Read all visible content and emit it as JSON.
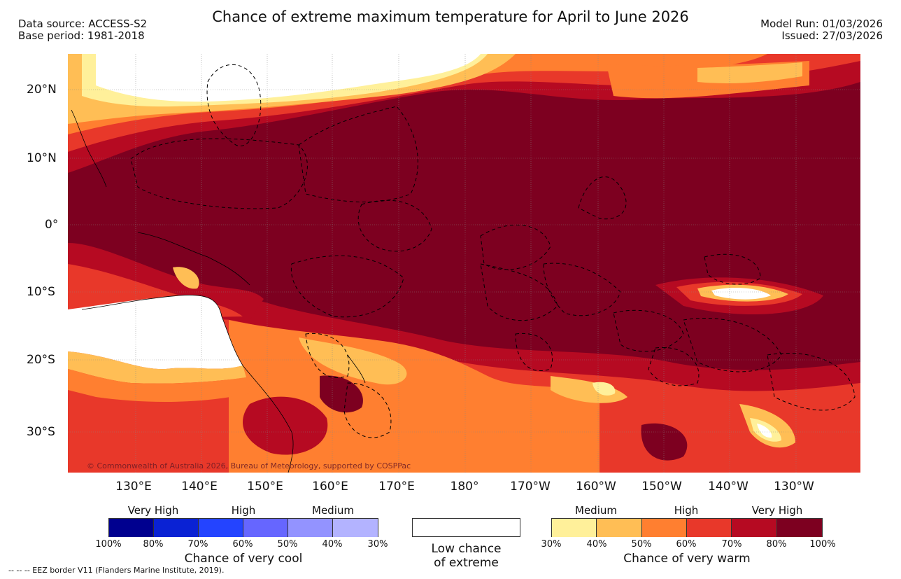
{
  "header": {
    "title": "Chance of extreme maximum temperature for April to June 2026",
    "data_source": "Data source: ACCESS-S2",
    "base_period": "Base period: 1981-2018",
    "model_run": "Model Run: 01/03/2026",
    "issued": "Issued: 27/03/2026"
  },
  "map": {
    "lat_labels": [
      "20°N",
      "10°N",
      "0°",
      "10°S",
      "20°S",
      "30°S"
    ],
    "lon_labels": [
      "130°E",
      "140°E",
      "150°E",
      "160°E",
      "170°E",
      "180°",
      "170°W",
      "160°W",
      "150°W",
      "140°W",
      "130°W"
    ],
    "copyright": "© Commonwealth of Australia 2026, Bureau of Meteorology, supported by COSPPac",
    "base_color": "#7d0020"
  },
  "legend_cool": {
    "band_labels": [
      "Very High",
      "High",
      "Medium"
    ],
    "ticks": [
      "100%",
      "80%",
      "70%",
      "60%",
      "50%",
      "40%",
      "30%"
    ],
    "colors": [
      "#00008f",
      "#0a22d4",
      "#2444ff",
      "#6666ff",
      "#9393ff",
      "#b3b3ff"
    ],
    "title": "Chance of very cool"
  },
  "legend_low": {
    "label_line1": "Low chance",
    "label_line2": "of extreme",
    "color": "#ffffff"
  },
  "legend_warm": {
    "band_labels": [
      "Medium",
      "High",
      "Very High"
    ],
    "ticks": [
      "30%",
      "40%",
      "50%",
      "60%",
      "70%",
      "80%",
      "100%"
    ],
    "colors": [
      "#fff09a",
      "#ffbe55",
      "#ff7f30",
      "#e8382a",
      "#b60a22",
      "#7d0020"
    ],
    "title": "Chance of very warm"
  },
  "footnote": "-- -- -- EEZ border V11 (Flanders Marine Institute, 2019)."
}
